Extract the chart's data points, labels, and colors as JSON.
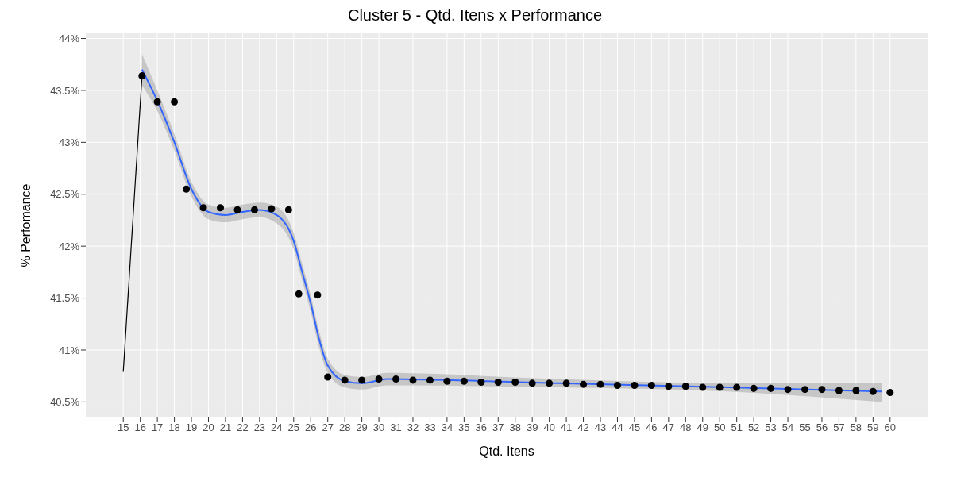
{
  "chart_data": {
    "type": "scatter",
    "title": "Cluster 5 - Qtd. Itens x Performance",
    "xlabel": "Qtd. Itens",
    "ylabel": "% Perfomance",
    "xlim": [
      12.8,
      62.2
    ],
    "ylim": [
      40.35,
      44.05
    ],
    "xticks": [
      15,
      16,
      17,
      18,
      19,
      20,
      21,
      22,
      23,
      24,
      25,
      26,
      27,
      28,
      29,
      30,
      31,
      32,
      33,
      34,
      35,
      36,
      37,
      38,
      39,
      40,
      41,
      42,
      43,
      44,
      45,
      46,
      47,
      48,
      49,
      50,
      51,
      52,
      53,
      54,
      55,
      56,
      57,
      58,
      59,
      60
    ],
    "yticks": [
      {
        "value": 40.5,
        "label": "40.5%"
      },
      {
        "value": 41,
        "label": "41%"
      },
      {
        "value": 41.5,
        "label": "41.5%"
      },
      {
        "value": 42,
        "label": "42%"
      },
      {
        "value": 42.5,
        "label": "42.5%"
      },
      {
        "value": 43,
        "label": "43%"
      },
      {
        "value": 43.5,
        "label": "43.5%"
      },
      {
        "value": 44,
        "label": "44%"
      }
    ],
    "grid": true,
    "series": [
      {
        "type": "line",
        "color": "#000000",
        "marker": "none",
        "x": [
          15,
          16.1
        ],
        "values": [
          40.79,
          43.64
        ]
      },
      {
        "type": "line",
        "color": "#3366ff",
        "marker": "none",
        "x": [
          16.1,
          17,
          18,
          19,
          20,
          21,
          22,
          23,
          24,
          25,
          25.5,
          26,
          26.5,
          27,
          28,
          29,
          30.5,
          40.5,
          50.5,
          59.5
        ],
        "values": [
          43.7,
          43.4,
          43.0,
          42.55,
          42.33,
          42.3,
          42.33,
          42.35,
          42.3,
          42.05,
          41.75,
          41.45,
          41.1,
          40.85,
          40.7,
          40.68,
          40.72,
          40.68,
          40.64,
          40.6
        ],
        "lower": [
          43.55,
          43.3,
          42.92,
          42.48,
          42.26,
          42.23,
          42.26,
          42.28,
          42.22,
          41.97,
          41.67,
          41.37,
          41.02,
          40.78,
          40.64,
          40.62,
          40.66,
          40.64,
          40.6,
          40.5
        ],
        "upper": [
          43.85,
          43.5,
          43.08,
          42.62,
          42.4,
          42.37,
          42.4,
          42.42,
          42.38,
          42.13,
          41.83,
          41.53,
          41.18,
          40.92,
          40.76,
          40.74,
          40.78,
          40.72,
          40.68,
          40.68
        ]
      },
      {
        "color": "#000000",
        "marker": "circle",
        "x": [
          16.1,
          17,
          18,
          18.7,
          19.7,
          20.7,
          21.7,
          22.7,
          23.7,
          24.7,
          25.3,
          26.4,
          27,
          28,
          29,
          30,
          31,
          32,
          33,
          34,
          35,
          36,
          37,
          38,
          39,
          40,
          41,
          42,
          43,
          44,
          45,
          46,
          47,
          48,
          49,
          50,
          51,
          52,
          53,
          54,
          55,
          56,
          57,
          58,
          59,
          60
        ],
        "values": [
          43.64,
          43.39,
          43.39,
          42.55,
          42.37,
          42.37,
          42.35,
          42.35,
          42.36,
          42.35,
          41.54,
          41.53,
          40.74,
          40.71,
          40.71,
          40.72,
          40.72,
          40.71,
          40.71,
          40.7,
          40.7,
          40.69,
          40.69,
          40.69,
          40.68,
          40.68,
          40.68,
          40.67,
          40.67,
          40.66,
          40.66,
          40.66,
          40.65,
          40.65,
          40.64,
          40.64,
          40.64,
          40.63,
          40.63,
          40.62,
          40.62,
          40.62,
          40.61,
          40.61,
          40.6,
          40.59
        ]
      }
    ]
  }
}
